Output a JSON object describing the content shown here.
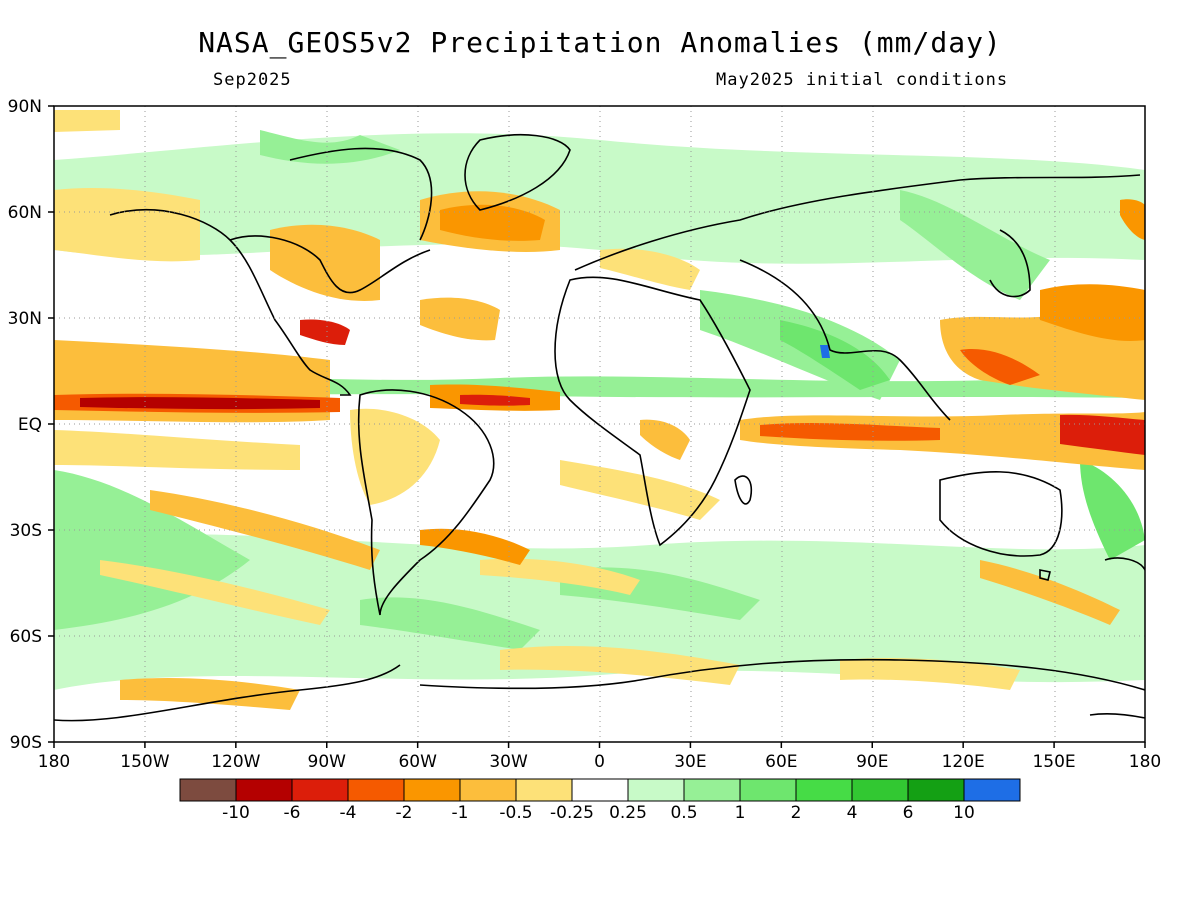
{
  "title": "NASA_GEOS5v2 Precipitation Anomalies (mm/day)",
  "subtitle_left": "Sep2025",
  "subtitle_right": "May2025 initial conditions",
  "axes": {
    "lat_ticks": [
      "90N",
      "60N",
      "30N",
      "EQ",
      "30S",
      "60S",
      "90S"
    ],
    "lon_ticks": [
      "180",
      "150W",
      "120W",
      "90W",
      "60W",
      "30W",
      "0",
      "30E",
      "60E",
      "90E",
      "120E",
      "150E",
      "180"
    ]
  },
  "colorbar": {
    "colors": [
      "#7d4b3f",
      "#b40000",
      "#dc1e0a",
      "#f55a00",
      "#fa9600",
      "#fcbe3c",
      "#fde178",
      "#ffffff",
      "#c8fac8",
      "#96f096",
      "#6ee66e",
      "#46dc46",
      "#32c832",
      "#14a014",
      "#1e6ee6"
    ],
    "labels": [
      "-10",
      "-6",
      "-4",
      "-2",
      "-1",
      "-0.5",
      "-0.25",
      "0.25",
      "0.5",
      "1",
      "2",
      "4",
      "6",
      "10"
    ]
  }
}
